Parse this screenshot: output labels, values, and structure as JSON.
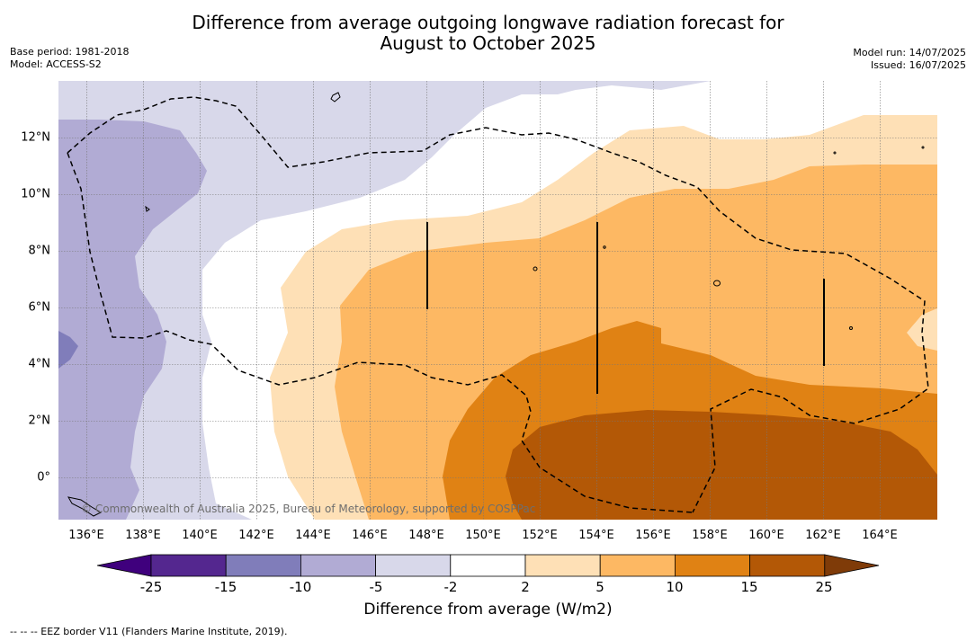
{
  "title_line1": "Difference from average outgoing longwave radiation forecast for",
  "title_line2": "August to October 2025",
  "base_period": "Base period: 1981-2018",
  "model": "Model: ACCESS-S2",
  "model_run": "Model run: 14/07/2025",
  "issued": "Issued: 16/07/2025",
  "copyright": "© Commonwealth of Australia 2025, Bureau of Meteorology, supported by COSPPac",
  "footnote": "-- -- -- EEZ border V11 (Flanders Marine Institute, 2019).",
  "colorbar": {
    "label": "Difference from average (W/m2)",
    "ticks": [
      "-25",
      "-15",
      "-10",
      "-5",
      "-2",
      "2",
      "5",
      "10",
      "15",
      "25"
    ],
    "colors": [
      "#3f007d",
      "#54278f",
      "#807dba",
      "#b1abd4",
      "#d8d8ea",
      "#ffffff",
      "#fee0b6",
      "#fdb863",
      "#e08214",
      "#b35806",
      "#7f3b08"
    ]
  },
  "map": {
    "lon_labels": [
      "136°E",
      "138°E",
      "140°E",
      "142°E",
      "144°E",
      "146°E",
      "148°E",
      "150°E",
      "152°E",
      "154°E",
      "156°E",
      "158°E",
      "160°E",
      "162°E",
      "164°E"
    ],
    "lat_labels": [
      "12°N",
      "10°N",
      "8°N",
      "6°N",
      "4°N",
      "2°N",
      "0°"
    ],
    "grid": true,
    "border_style": "dashed"
  }
}
